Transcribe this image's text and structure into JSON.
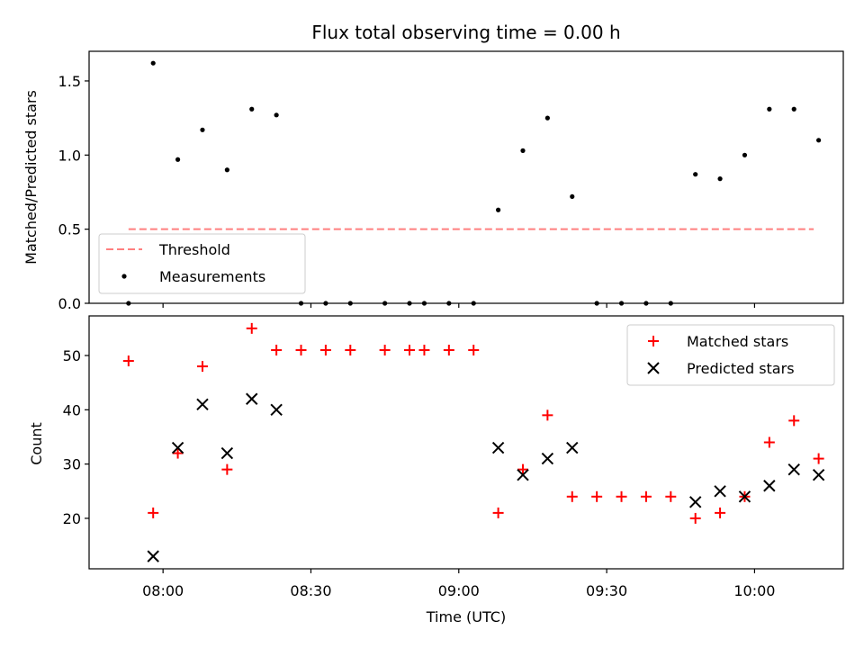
{
  "chart_data": [
    {
      "type": "scatter",
      "title": "Flux total observing time = 0.00 h",
      "xlabel": "",
      "ylabel": "Matched/Predicted stars",
      "ylim": [
        0,
        1.7
      ],
      "yticks": [
        "0.0",
        "0.5",
        "1.0",
        "1.5"
      ],
      "legend": {
        "placement": "lower-left",
        "entries": [
          "Threshold",
          "Measurements"
        ]
      },
      "threshold": {
        "name": "Threshold",
        "value": 0.5,
        "x_start": "07:53",
        "x_end": "10:12",
        "color": "#ff7f7f"
      },
      "series": [
        {
          "name": "Measurements",
          "marker": "dot",
          "color": "#000000",
          "points": [
            [
              "07:53",
              0.0
            ],
            [
              "07:58",
              1.62
            ],
            [
              "08:03",
              0.97
            ],
            [
              "08:08",
              1.17
            ],
            [
              "08:13",
              0.9
            ],
            [
              "08:18",
              1.31
            ],
            [
              "08:23",
              1.27
            ],
            [
              "08:28",
              0.0
            ],
            [
              "08:33",
              0.0
            ],
            [
              "08:38",
              0.0
            ],
            [
              "08:45",
              0.0
            ],
            [
              "08:50",
              0.0
            ],
            [
              "08:53",
              0.0
            ],
            [
              "08:58",
              0.0
            ],
            [
              "09:03",
              0.0
            ],
            [
              "09:08",
              0.63
            ],
            [
              "09:13",
              1.03
            ],
            [
              "09:18",
              1.25
            ],
            [
              "09:23",
              0.72
            ],
            [
              "09:28",
              0.0
            ],
            [
              "09:33",
              0.0
            ],
            [
              "09:38",
              0.0
            ],
            [
              "09:43",
              0.0
            ],
            [
              "09:48",
              0.87
            ],
            [
              "09:53",
              0.84
            ],
            [
              "09:58",
              1.0
            ],
            [
              "10:03",
              1.31
            ],
            [
              "10:08",
              1.31
            ],
            [
              "10:13",
              1.1
            ]
          ]
        }
      ]
    },
    {
      "type": "scatter",
      "title": "",
      "xlabel": "Time (UTC)",
      "ylabel": "Count",
      "ylim": [
        10.7,
        57.3
      ],
      "yticks": [
        "20",
        "30",
        "40",
        "50"
      ],
      "xlim": [
        "07:45",
        "10:18"
      ],
      "xticks": [
        "08:00",
        "08:30",
        "09:00",
        "09:30",
        "10:00"
      ],
      "legend": {
        "placement": "top-right",
        "entries": [
          "Matched stars",
          "Predicted stars"
        ]
      },
      "series": [
        {
          "name": "Matched stars",
          "marker": "plus",
          "color": "#ff0000",
          "points": [
            [
              "07:53",
              49
            ],
            [
              "07:58",
              21
            ],
            [
              "08:03",
              32
            ],
            [
              "08:08",
              48
            ],
            [
              "08:13",
              29
            ],
            [
              "08:18",
              55
            ],
            [
              "08:23",
              51
            ],
            [
              "08:28",
              51
            ],
            [
              "08:33",
              51
            ],
            [
              "08:38",
              51
            ],
            [
              "08:45",
              51
            ],
            [
              "08:50",
              51
            ],
            [
              "08:53",
              51
            ],
            [
              "08:58",
              51
            ],
            [
              "09:03",
              51
            ],
            [
              "09:08",
              21
            ],
            [
              "09:13",
              29
            ],
            [
              "09:18",
              39
            ],
            [
              "09:23",
              24
            ],
            [
              "09:28",
              24
            ],
            [
              "09:33",
              24
            ],
            [
              "09:38",
              24
            ],
            [
              "09:43",
              24
            ],
            [
              "09:48",
              20
            ],
            [
              "09:53",
              21
            ],
            [
              "09:58",
              24
            ],
            [
              "10:03",
              34
            ],
            [
              "10:08",
              38
            ],
            [
              "10:13",
              31
            ]
          ]
        },
        {
          "name": "Predicted stars",
          "marker": "x",
          "color": "#000000",
          "points": [
            [
              "07:58",
              13
            ],
            [
              "08:03",
              33
            ],
            [
              "08:08",
              41
            ],
            [
              "08:13",
              32
            ],
            [
              "08:18",
              42
            ],
            [
              "08:23",
              40
            ],
            [
              "09:08",
              33
            ],
            [
              "09:13",
              28
            ],
            [
              "09:18",
              31
            ],
            [
              "09:23",
              33
            ],
            [
              "09:48",
              23
            ],
            [
              "09:53",
              25
            ],
            [
              "09:58",
              24
            ],
            [
              "10:03",
              26
            ],
            [
              "10:08",
              29
            ],
            [
              "10:13",
              28
            ]
          ]
        }
      ]
    }
  ]
}
